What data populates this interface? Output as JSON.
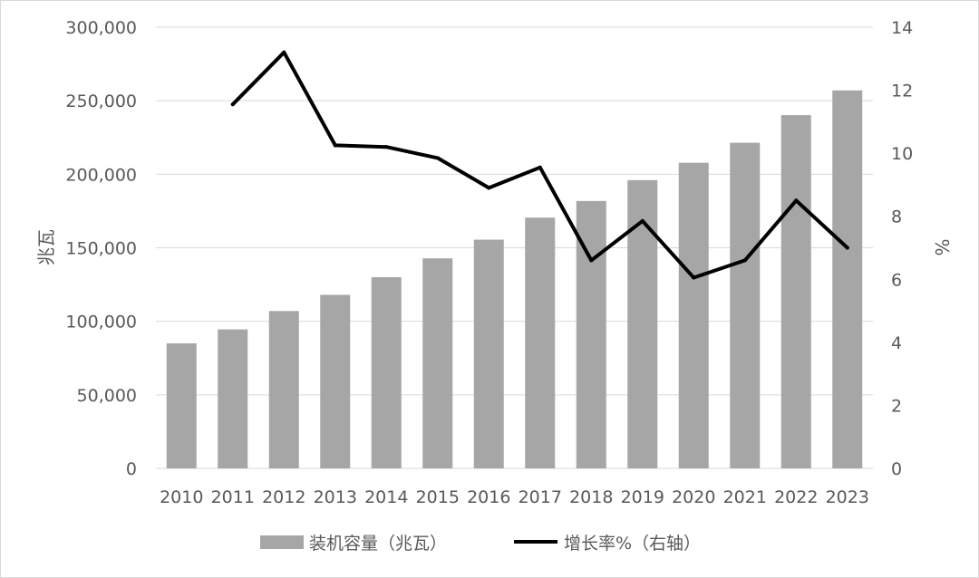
{
  "chart_data": {
    "type": "bar",
    "categories": [
      "2010",
      "2011",
      "2012",
      "2013",
      "2014",
      "2015",
      "2016",
      "2017",
      "2018",
      "2019",
      "2020",
      "2021",
      "2022",
      "2023"
    ],
    "series": [
      {
        "name": "装机容量（兆瓦）",
        "type": "bar",
        "axis": "left",
        "color": "#a6a6a6",
        "values": [
          85000,
          94500,
          107000,
          118000,
          130000,
          142800,
          155500,
          170500,
          181800,
          196000,
          207800,
          221400,
          240200,
          257000
        ]
      },
      {
        "name": "增长率%（右轴）",
        "type": "line",
        "axis": "right",
        "color": "#000000",
        "values": [
          null,
          11.55,
          13.2,
          10.25,
          10.2,
          9.85,
          8.9,
          9.55,
          6.6,
          7.85,
          6.05,
          6.6,
          8.5,
          7.0
        ]
      }
    ],
    "ylabel": "兆瓦",
    "y2label": "%",
    "ylim": [
      0,
      300000
    ],
    "y2lim": [
      0,
      14
    ],
    "yticks": [
      "0",
      "50,000",
      "100,000",
      "150,000",
      "200,000",
      "250,000",
      "300,000"
    ],
    "y2ticks": [
      "0",
      "2",
      "4",
      "6",
      "8",
      "10",
      "12",
      "14"
    ],
    "grid": true,
    "legend": "bottom"
  }
}
